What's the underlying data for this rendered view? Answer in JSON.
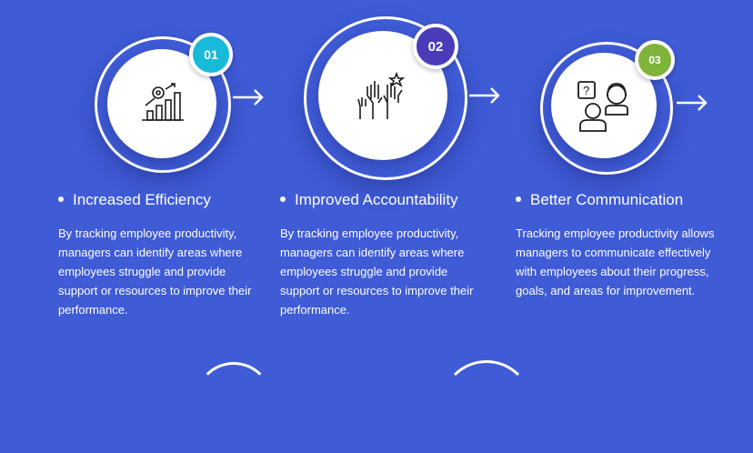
{
  "cards": [
    {
      "number": "01",
      "badge_color": "#19b9d9",
      "icon": "growth-chart-gear-icon",
      "title": "Increased Efficiency",
      "desc": "By tracking employee productivity, managers can identify areas where employees struggle and provide support or resources to improve their performance."
    },
    {
      "number": "02",
      "badge_color": "#4a3bb8",
      "icon": "raised-hands-star-icon",
      "title": "Improved Accountability",
      "desc": "By tracking employee productivity, managers can identify areas where employees struggle and provide support or resources to improve their performance."
    },
    {
      "number": "03",
      "badge_color": "#7fb33a",
      "icon": "people-conversation-icon",
      "title": "Better Communication",
      "desc": "Tracking employee productivity allows managers to communicate effectively with employees about their progress, goals, and areas for improvement."
    }
  ]
}
